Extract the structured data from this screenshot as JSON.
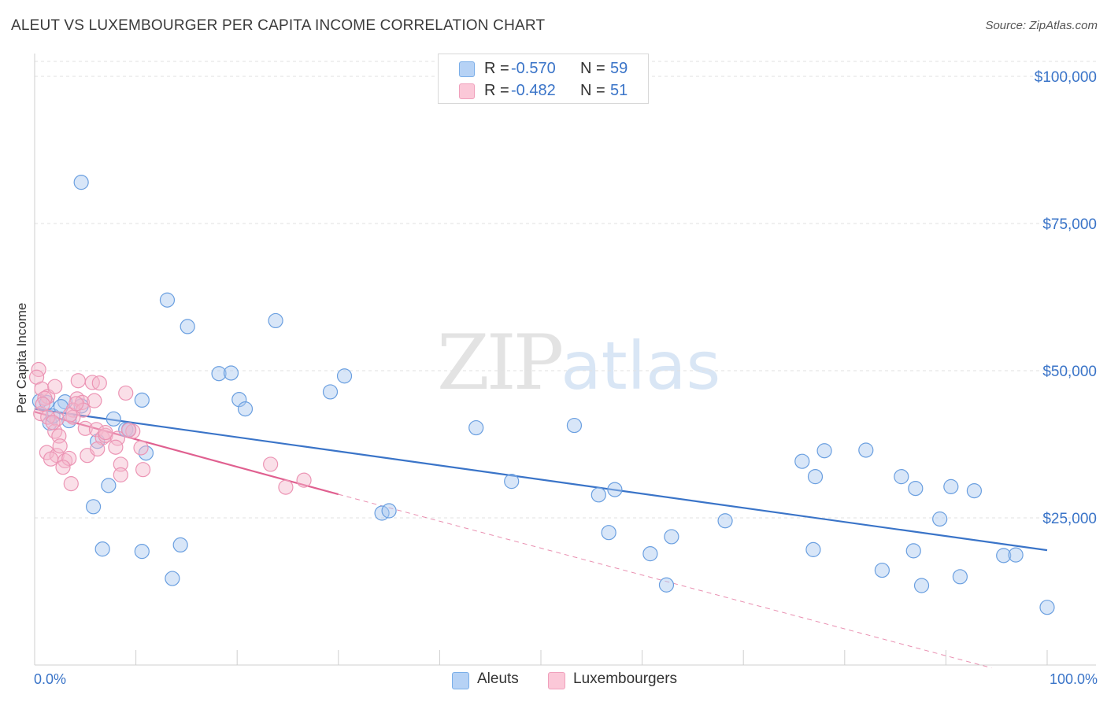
{
  "header": {
    "title": "ALEUT VS LUXEMBOURGER PER CAPITA INCOME CORRELATION CHART",
    "source": "Source: ZipAtlas.com"
  },
  "watermark": {
    "zip": "ZIP",
    "atlas": "atlas"
  },
  "stats": {
    "rows": [
      {
        "r_label": "R =",
        "r_value": "-0.570",
        "n_label": "N =",
        "n_value": "59",
        "color": "#7aaee8"
      },
      {
        "r_label": "R =",
        "r_value": "-0.482",
        "n_label": "N =",
        "n_value": "51",
        "color": "#f0a0bc"
      }
    ]
  },
  "legend": {
    "items": [
      {
        "label": "Aleuts"
      },
      {
        "label": "Luxembourgers"
      }
    ]
  },
  "chart_data": {
    "type": "scatter",
    "ylabel": "Per Capita Income",
    "xlim": [
      0,
      100
    ],
    "ylim": [
      0,
      105000
    ],
    "y_ticks": [
      {
        "value": 25000,
        "label": "$25,000"
      },
      {
        "value": 50000,
        "label": "$50,000"
      },
      {
        "value": 75000,
        "label": "$75,000"
      },
      {
        "value": 100000,
        "label": "$100,000"
      }
    ],
    "x_tick_labels": [
      {
        "value": 0,
        "label": "0.0%"
      },
      {
        "value": 100,
        "label": "100.0%"
      }
    ],
    "grid": true,
    "colors": {
      "aleuts": "#3a74c8",
      "aleuts_fill": "#a8c8f0",
      "lux": "#e06090",
      "lux_fill": "#f5b8cc"
    },
    "series": [
      {
        "name": "Aleuts",
        "points": [
          [
            4.6,
            82000
          ],
          [
            13.1,
            62000
          ],
          [
            15.1,
            57500
          ],
          [
            23.8,
            58500
          ],
          [
            18.2,
            49500
          ],
          [
            19.4,
            49600
          ],
          [
            30.6,
            49100
          ],
          [
            29.2,
            46400
          ],
          [
            20.2,
            45100
          ],
          [
            20.8,
            43500
          ],
          [
            10.6,
            45000
          ],
          [
            3.0,
            44700
          ],
          [
            4.6,
            44000
          ],
          [
            1.5,
            41100
          ],
          [
            7.8,
            41800
          ],
          [
            9.0,
            40000
          ],
          [
            11.0,
            36000
          ],
          [
            6.2,
            38000
          ],
          [
            7.3,
            30500
          ],
          [
            5.8,
            26900
          ],
          [
            9.3,
            40000
          ],
          [
            3.4,
            41500
          ],
          [
            34.3,
            25800
          ],
          [
            35.0,
            26200
          ],
          [
            43.6,
            40300
          ],
          [
            47.1,
            31200
          ],
          [
            53.3,
            40700
          ],
          [
            55.7,
            28900
          ],
          [
            57.3,
            29800
          ],
          [
            56.7,
            22500
          ],
          [
            75.8,
            34600
          ],
          [
            77.1,
            32000
          ],
          [
            78.0,
            36400
          ],
          [
            82.1,
            36500
          ],
          [
            85.6,
            32000
          ],
          [
            87.0,
            30000
          ],
          [
            90.5,
            30300
          ],
          [
            92.8,
            29600
          ],
          [
            89.4,
            24800
          ],
          [
            68.2,
            24500
          ],
          [
            76.9,
            19600
          ],
          [
            86.8,
            19400
          ],
          [
            60.8,
            18900
          ],
          [
            62.9,
            21800
          ],
          [
            62.4,
            13600
          ],
          [
            83.7,
            16100
          ],
          [
            87.6,
            13500
          ],
          [
            91.4,
            15000
          ],
          [
            95.7,
            18600
          ],
          [
            96.9,
            18700
          ],
          [
            100.0,
            9800
          ],
          [
            6.7,
            19700
          ],
          [
            10.6,
            19300
          ],
          [
            14.4,
            20400
          ],
          [
            13.6,
            14700
          ],
          [
            1.8,
            42300
          ],
          [
            2.6,
            43900
          ],
          [
            0.5,
            44800
          ],
          [
            1.2,
            44600
          ]
        ],
        "trend": {
          "x": [
            0,
            100
          ],
          "y": [
            43500,
            19500
          ]
        }
      },
      {
        "name": "Luxembourgers",
        "points": [
          [
            0.4,
            50200
          ],
          [
            0.2,
            48900
          ],
          [
            0.7,
            46900
          ],
          [
            1.3,
            45600
          ],
          [
            1.0,
            45300
          ],
          [
            2.0,
            47300
          ],
          [
            4.3,
            48300
          ],
          [
            5.7,
            48000
          ],
          [
            6.4,
            47900
          ],
          [
            9.0,
            46200
          ],
          [
            4.2,
            45200
          ],
          [
            4.7,
            44600
          ],
          [
            3.8,
            43300
          ],
          [
            4.8,
            43300
          ],
          [
            5.0,
            40200
          ],
          [
            3.8,
            42100
          ],
          [
            2.2,
            41800
          ],
          [
            6.1,
            40000
          ],
          [
            2.0,
            39700
          ],
          [
            2.4,
            38900
          ],
          [
            6.7,
            38600
          ],
          [
            7.0,
            39000
          ],
          [
            8.2,
            38500
          ],
          [
            9.7,
            39700
          ],
          [
            10.5,
            36900
          ],
          [
            1.2,
            36100
          ],
          [
            2.2,
            35600
          ],
          [
            3.0,
            34700
          ],
          [
            3.4,
            35100
          ],
          [
            1.6,
            35000
          ],
          [
            5.2,
            35600
          ],
          [
            8.0,
            37000
          ],
          [
            8.5,
            34100
          ],
          [
            10.7,
            33200
          ],
          [
            2.8,
            33600
          ],
          [
            8.5,
            32300
          ],
          [
            3.6,
            30800
          ],
          [
            23.3,
            34100
          ],
          [
            24.8,
            30200
          ],
          [
            26.6,
            31400
          ],
          [
            0.6,
            42700
          ],
          [
            1.3,
            42100
          ],
          [
            3.5,
            42500
          ],
          [
            5.9,
            44900
          ],
          [
            0.8,
            44300
          ],
          [
            1.8,
            41200
          ],
          [
            4.1,
            44400
          ],
          [
            7.0,
            39500
          ],
          [
            2.5,
            37200
          ],
          [
            6.2,
            36700
          ],
          [
            9.3,
            39900
          ]
        ],
        "trend": {
          "x": [
            0,
            30,
            100
          ],
          "y": [
            43000,
            29000,
            -3000
          ]
        }
      }
    ]
  }
}
